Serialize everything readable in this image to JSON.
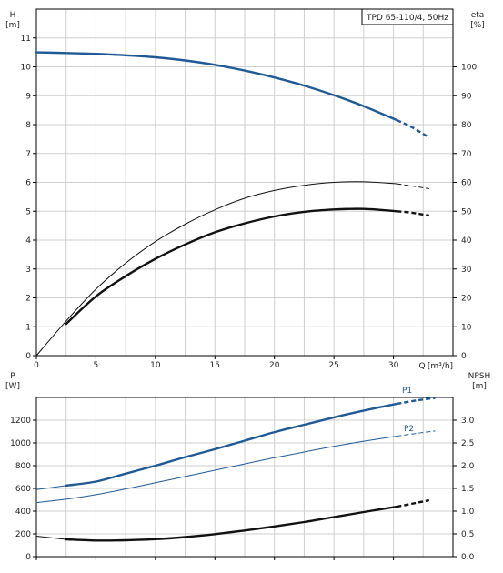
{
  "chart_data": [
    {
      "type": "line",
      "title": "TPD 65-110/4, 50Hz",
      "x_label": "Q [m³/h]",
      "x_unit_prefix": "Q",
      "x_unit": "[m³/h]",
      "y_left_label": "H",
      "y_left_unit": "[m]",
      "y_right_label": "eta",
      "y_right_unit": "[%]",
      "xlim": [
        0,
        35
      ],
      "ylim_left": [
        0,
        12
      ],
      "ylim_right": [
        0,
        120
      ],
      "x_ticks": [
        0,
        5,
        10,
        15,
        20,
        25,
        30
      ],
      "y_left_ticks": [
        0,
        1,
        2,
        3,
        4,
        5,
        6,
        7,
        8,
        9,
        10,
        11
      ],
      "y_right_ticks": [
        0,
        10,
        20,
        30,
        40,
        50,
        60,
        70,
        80,
        90,
        100
      ],
      "grid": true,
      "series": [
        {
          "axis": "left",
          "color": "#1f5a96",
          "width": 2.4,
          "points": [
            [
              0,
              10.5
            ],
            [
              2.5,
              10.48
            ],
            [
              5,
              10.45
            ],
            [
              7.5,
              10.4
            ],
            [
              10,
              10.33
            ],
            [
              12.5,
              10.22
            ],
            [
              15,
              10.07
            ],
            [
              17.5,
              9.87
            ],
            [
              20,
              9.63
            ],
            [
              22.5,
              9.35
            ],
            [
              25,
              9.02
            ],
            [
              27.5,
              8.64
            ],
            [
              30.3,
              8.15
            ]
          ],
          "dashed_points": [
            [
              30.3,
              8.15
            ],
            [
              31.5,
              7.92
            ],
            [
              33,
              7.55
            ]
          ]
        },
        {
          "axis": "left",
          "color": "#111111",
          "width": 1.0,
          "points": [
            [
              0,
              0
            ],
            [
              2.5,
              1.2
            ],
            [
              5,
              2.3
            ],
            [
              7.5,
              3.2
            ],
            [
              10,
              3.95
            ],
            [
              12.5,
              4.55
            ],
            [
              15,
              5.05
            ],
            [
              17.5,
              5.45
            ],
            [
              20,
              5.72
            ],
            [
              22.5,
              5.9
            ],
            [
              25,
              6.0
            ],
            [
              27.5,
              6.02
            ],
            [
              30.3,
              5.95
            ]
          ],
          "dashed_points": [
            [
              30.3,
              5.95
            ],
            [
              31.5,
              5.88
            ],
            [
              33,
              5.78
            ]
          ]
        },
        {
          "axis": "right",
          "color": "#111111",
          "width": 2.4,
          "points": [
            [
              2.5,
              11
            ],
            [
              5,
              20.5
            ],
            [
              7.5,
              27.5
            ],
            [
              10,
              33.5
            ],
            [
              12.5,
              38.5
            ],
            [
              15,
              42.7
            ],
            [
              17.5,
              45.8
            ],
            [
              20,
              48.2
            ],
            [
              22.5,
              49.8
            ],
            [
              25,
              50.6
            ],
            [
              27.5,
              50.8
            ],
            [
              30.3,
              50.0
            ]
          ],
          "dashed_points": [
            [
              30.3,
              50.0
            ],
            [
              31.5,
              49.5
            ],
            [
              33,
              48.5
            ]
          ]
        }
      ]
    },
    {
      "type": "line",
      "title": "",
      "y_left_label": "P",
      "y_left_unit": "[W]",
      "y_right_label": "NPSH",
      "y_right_unit": "[m]",
      "xlim": [
        0,
        35
      ],
      "ylim_left": [
        0,
        1400
      ],
      "ylim_right": [
        0,
        3.5
      ],
      "x_ticks": [
        0,
        5,
        10,
        15,
        20,
        25,
        30
      ],
      "y_left_ticks": [
        0,
        200,
        400,
        600,
        800,
        1000,
        1200
      ],
      "y_right_ticks": [
        "0.0",
        "0.5",
        "1.0",
        "1.5",
        "2.0",
        "2.5",
        "3.0"
      ],
      "grid": true,
      "series": [
        {
          "name": "P1",
          "axis": "left",
          "color": "#1f5a96",
          "width": 2.4,
          "points": [
            [
              2.5,
              625
            ],
            [
              5,
              660
            ],
            [
              7.5,
              730
            ],
            [
              10,
              800
            ],
            [
              12.5,
              875
            ],
            [
              15,
              945
            ],
            [
              17.5,
              1020
            ],
            [
              20,
              1095
            ],
            [
              22.5,
              1160
            ],
            [
              25,
              1225
            ],
            [
              27.5,
              1285
            ],
            [
              30.3,
              1345
            ]
          ],
          "dashed_points": [
            [
              30.3,
              1345
            ],
            [
              32,
              1375
            ],
            [
              33.5,
              1395
            ]
          ],
          "thin_lead": [
            [
              0,
              590
            ],
            [
              2.5,
              625
            ]
          ]
        },
        {
          "name": "P2",
          "axis": "left",
          "color": "#1f5a96",
          "width": 1.0,
          "points": [
            [
              0,
              475
            ],
            [
              2.5,
              505
            ],
            [
              5,
              545
            ],
            [
              7.5,
              595
            ],
            [
              10,
              650
            ],
            [
              12.5,
              705
            ],
            [
              15,
              760
            ],
            [
              17.5,
              815
            ],
            [
              20,
              870
            ],
            [
              22.5,
              920
            ],
            [
              25,
              970
            ],
            [
              27.5,
              1015
            ],
            [
              30.3,
              1060
            ]
          ],
          "dashed_points": [
            [
              30.3,
              1060
            ],
            [
              32,
              1085
            ],
            [
              33.5,
              1105
            ]
          ]
        },
        {
          "axis": "right",
          "color": "#111111",
          "width": 2.4,
          "points": [
            [
              2.5,
              0.38
            ],
            [
              5,
              0.355
            ],
            [
              7.5,
              0.36
            ],
            [
              10,
              0.385
            ],
            [
              12.5,
              0.43
            ],
            [
              15,
              0.495
            ],
            [
              17.5,
              0.575
            ],
            [
              20,
              0.665
            ],
            [
              22.5,
              0.76
            ],
            [
              25,
              0.87
            ],
            [
              27.5,
              0.98
            ],
            [
              30.3,
              1.1
            ]
          ],
          "dashed_points": [
            [
              30.3,
              1.1
            ],
            [
              31.5,
              1.16
            ],
            [
              33,
              1.24
            ]
          ],
          "thin_lead": [
            [
              0,
              0.45
            ],
            [
              2.5,
              0.38
            ]
          ]
        }
      ]
    }
  ]
}
